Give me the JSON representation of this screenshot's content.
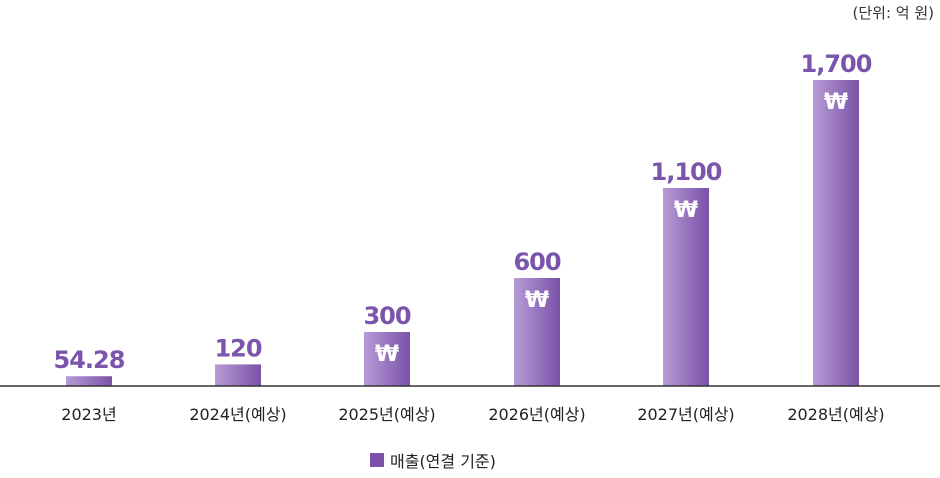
{
  "chart_data": {
    "type": "bar",
    "unit_note": "(단위: 억 원)",
    "categories": [
      "2023년",
      "2024년(예상)",
      "2025년(예상)",
      "2026년(예상)",
      "2027년(예상)",
      "2028년(예상)"
    ],
    "series": [
      {
        "name": "매출(연결 기준)",
        "values": [
          54.28,
          120,
          300,
          600,
          1100,
          1700
        ],
        "value_labels": [
          "54.28",
          "120",
          "300",
          "600",
          "1,100",
          "1,700"
        ]
      }
    ],
    "ylim": [
      0,
      1700
    ],
    "grid": false,
    "legend_position": "bottom",
    "bar_icon_symbol": "₩",
    "colors": {
      "bar_light": "#b79bd6",
      "bar_dark": "#7a52a8",
      "label": "#7b55ab",
      "axis": "#333333"
    }
  }
}
